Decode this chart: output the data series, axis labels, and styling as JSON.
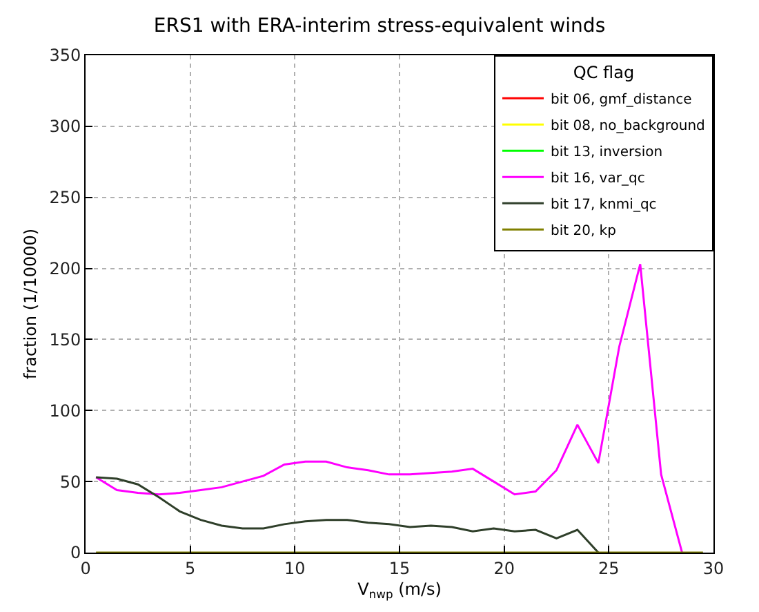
{
  "chart_data": {
    "type": "line",
    "title": "ERS1 with ERA-interim stress-equivalent winds",
    "xlabel": "V$_{nwp}$ (m/s)",
    "ylabel": "fraction (1/10000)",
    "legend_title": "QC flag",
    "x": [
      0.5,
      1.5,
      2.5,
      3.5,
      4.5,
      5.5,
      6.5,
      7.5,
      8.5,
      9.5,
      10.5,
      11.5,
      12.5,
      13.5,
      14.5,
      15.5,
      16.5,
      17.5,
      18.5,
      19.5,
      20.5,
      21.5,
      22.5,
      23.5,
      24.5,
      25.5,
      26.5,
      27.5,
      28.5,
      29.5
    ],
    "xlim": [
      0,
      30
    ],
    "xticks": [
      0,
      5,
      10,
      15,
      20,
      25,
      30
    ],
    "ylim": [
      0,
      350
    ],
    "yticks": [
      0,
      50,
      100,
      150,
      200,
      250,
      300,
      350
    ],
    "grid": true,
    "legend": "top right",
    "line_style": "solid",
    "marker": "none",
    "series": [
      {
        "name": "bit 06, gmf_distance",
        "color": "#ff0000",
        "values": [
          null,
          null,
          null,
          null,
          null,
          null,
          null,
          null,
          null,
          null,
          null,
          null,
          null,
          null,
          null,
          null,
          null,
          null,
          null,
          null,
          null,
          null,
          null,
          null,
          null,
          null,
          null,
          null,
          null,
          null
        ]
      },
      {
        "name": "bit 08, no_background",
        "color": "#ffff00",
        "values": [
          null,
          null,
          null,
          null,
          null,
          null,
          null,
          null,
          null,
          null,
          null,
          null,
          null,
          null,
          null,
          null,
          null,
          null,
          null,
          null,
          null,
          null,
          null,
          null,
          null,
          null,
          null,
          null,
          null,
          null
        ]
      },
      {
        "name": "bit 13, inversion",
        "color": "#00ff00",
        "values": [
          null,
          null,
          null,
          null,
          null,
          null,
          null,
          null,
          null,
          null,
          null,
          null,
          null,
          null,
          null,
          null,
          null,
          null,
          null,
          null,
          null,
          null,
          null,
          null,
          null,
          null,
          null,
          null,
          null,
          null
        ]
      },
      {
        "name": "bit 16, var_qc",
        "color": "#ff00ff",
        "values": [
          53,
          44,
          42,
          41,
          42,
          44,
          46,
          50,
          54,
          62,
          64,
          64,
          60,
          58,
          55,
          55,
          56,
          57,
          59,
          50,
          41,
          43,
          58,
          90,
          63,
          145,
          203,
          55,
          0,
          null
        ]
      },
      {
        "name": "bit 17, knmi_qc",
        "color": "#2f3f2a",
        "values": [
          53,
          52,
          48,
          39,
          29,
          23,
          19,
          17,
          17,
          20,
          22,
          23,
          23,
          21,
          20,
          18,
          19,
          18,
          15,
          17,
          15,
          16,
          10,
          16,
          0,
          null,
          null,
          null,
          null,
          null
        ]
      },
      {
        "name": "bit 20, kp",
        "color": "#808000",
        "values": [
          0,
          0,
          0,
          0,
          0,
          0,
          0,
          0,
          0,
          0,
          0,
          0,
          0,
          0,
          0,
          0,
          0,
          0,
          0,
          0,
          0,
          0,
          0,
          0,
          0,
          0,
          0,
          0,
          0,
          0
        ]
      }
    ]
  }
}
